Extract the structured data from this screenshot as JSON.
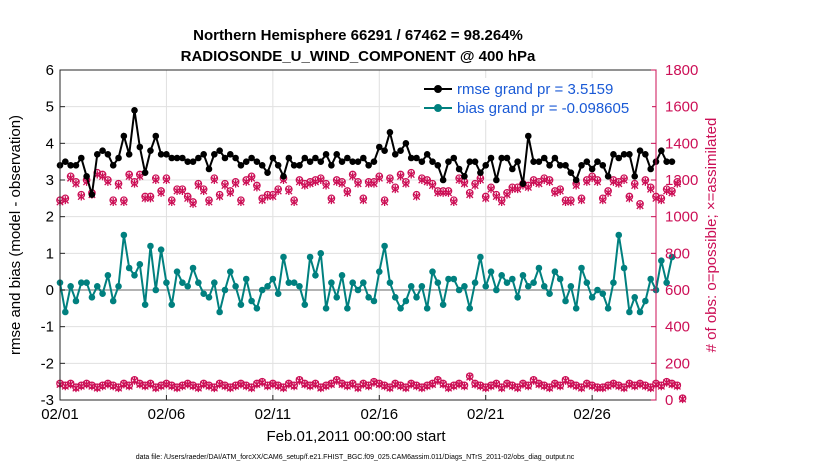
{
  "chart_data": {
    "type": "line",
    "title_line1": "Northern Hemisphere 66291 / 67462 = 98.264%",
    "title_line2": "RADIOSONDE_U_WIND_COMPONENT @ 400 hPa",
    "xlabel": "Feb.01,2011 00:00:00 start",
    "ylabel_left": "rmse and bias (model - observation)",
    "ylabel_right": "# of obs: o=possible; ×=assimilated",
    "footer": "data file: /Users/raeder/DAI/ATM_forcXX/CAM6_setup/f.e21.FHIST_BGC.f09_025.CAM6assim.011/Diags_NTrS_2011-02/obs_diag_output.nc",
    "x_ticks": [
      "02/01",
      "02/06",
      "02/11",
      "02/16",
      "02/21",
      "02/26"
    ],
    "x_tick_days": [
      0,
      5,
      10,
      15,
      20,
      25
    ],
    "xlim_days": [
      0,
      28
    ],
    "ylim_left": [
      -3,
      6
    ],
    "y_ticks_left": [
      "-3",
      "-2",
      "-1",
      "0",
      "1",
      "2",
      "3",
      "4",
      "5",
      "6"
    ],
    "ylim_right": [
      0,
      1800
    ],
    "y_ticks_right": [
      "0",
      "200",
      "400",
      "600",
      "800",
      "1000",
      "1200",
      "1400",
      "1600",
      "1800"
    ],
    "colors": {
      "rmse": "#000000",
      "bias": "#00807f",
      "obs": "#cc0f56",
      "zero_line": "#b3b3b3",
      "grid": "#e0e0e0",
      "legend_text": "#1a5ad6"
    },
    "legend": [
      {
        "key": "rmse",
        "label": "rmse grand pr = 3.5159"
      },
      {
        "key": "bias",
        "label": "bias grand pr = -0.098605"
      }
    ],
    "time_step_days": 0.25,
    "series": [
      {
        "name": "rmse",
        "axis": "left",
        "values": [
          3.4,
          3.5,
          3.4,
          3.4,
          3.6,
          3.1,
          2.6,
          3.7,
          3.8,
          3.7,
          3.4,
          3.6,
          4.2,
          3.7,
          4.9,
          3.9,
          3.2,
          3.8,
          4.2,
          3.7,
          3.7,
          3.6,
          3.6,
          3.6,
          3.5,
          3.5,
          3.6,
          3.7,
          3.3,
          3.7,
          3.8,
          3.6,
          3.7,
          3.6,
          3.4,
          3.5,
          3.6,
          3.5,
          3.4,
          3.2,
          3.6,
          3.4,
          3.1,
          3.6,
          3.4,
          3.4,
          3.6,
          3.5,
          3.6,
          3.5,
          3.7,
          3.4,
          3.7,
          3.5,
          3.6,
          3.5,
          3.5,
          3.6,
          3.4,
          3.5,
          3.9,
          3.8,
          4.3,
          3.7,
          3.8,
          4.0,
          3.6,
          3.6,
          3.5,
          3.7,
          3.5,
          3.4,
          3.0,
          3.5,
          3.6,
          3.3,
          3.1,
          3.5,
          3.5,
          3.2,
          3.4,
          3.6,
          3.0,
          3.6,
          3.6,
          3.3,
          3.5,
          2.9,
          4.2,
          3.5,
          3.5,
          3.6,
          3.4,
          3.6,
          3.4,
          3.4,
          3.2,
          3.0,
          3.4,
          3.5,
          3.3,
          3.5,
          3.4,
          3.1,
          3.7,
          3.6,
          3.7,
          3.7,
          3.1,
          3.8,
          3.7,
          3.3,
          3.5,
          3.8,
          3.5,
          3.5
        ]
      },
      {
        "name": "bias",
        "axis": "left",
        "values": [
          0.2,
          -0.6,
          0.1,
          -0.3,
          0.2,
          0.2,
          -0.2,
          0.1,
          -0.1,
          0.4,
          -0.3,
          0.1,
          1.5,
          0.6,
          0.4,
          0.7,
          -0.4,
          1.2,
          0.0,
          1.1,
          0.2,
          -0.4,
          0.5,
          0.2,
          0.1,
          0.6,
          0.2,
          -0.1,
          -0.2,
          0.2,
          -0.6,
          0.0,
          0.5,
          0.1,
          -0.4,
          0.3,
          -0.3,
          -0.5,
          0.0,
          0.1,
          0.3,
          -0.1,
          0.9,
          0.2,
          0.2,
          0.1,
          -0.4,
          0.9,
          0.4,
          1.0,
          -0.5,
          0.2,
          -0.2,
          0.4,
          -0.5,
          0.2,
          0.0,
          0.2,
          -0.2,
          -0.3,
          0.5,
          1.2,
          0.2,
          -0.2,
          -0.5,
          -0.3,
          0.1,
          -0.2,
          0.1,
          -0.5,
          0.5,
          0.2,
          -0.4,
          0.3,
          0.3,
          0.0,
          0.1,
          -0.5,
          0.2,
          0.9,
          0.1,
          0.5,
          0.0,
          0.4,
          0.2,
          0.3,
          -0.2,
          0.4,
          0.1,
          0.2,
          0.6,
          0.1,
          -0.1,
          0.5,
          0.3,
          -0.3,
          0.1,
          -0.5,
          0.6,
          0.2,
          -0.2,
          0.0,
          -0.1,
          -0.5,
          0.2,
          1.5,
          0.6,
          -0.6,
          -0.2,
          -0.6,
          -0.3,
          0.3,
          0.0,
          0.8,
          0.2,
          0.9
        ]
      },
      {
        "name": "obs_possible_high",
        "axis": "right",
        "values": [
          1090,
          1100,
          1220,
          1190,
          1120,
          1200,
          1130,
          1240,
          1230,
          1200,
          1090,
          1180,
          1090,
          1230,
          1190,
          1230,
          1110,
          1110,
          1210,
          1140,
          1210,
          1090,
          1150,
          1150,
          1110,
          1080,
          1180,
          1150,
          1090,
          1210,
          1120,
          1180,
          1140,
          1190,
          1090,
          1200,
          1220,
          1170,
          1100,
          1120,
          1120,
          1150,
          1210,
          1150,
          1090,
          1200,
          1180,
          1190,
          1200,
          1210,
          1180,
          1100,
          1200,
          1190,
          1140,
          1230,
          1190,
          1100,
          1190,
          1190,
          1220,
          1090,
          1210,
          1160,
          1230,
          1190,
          1240,
          1120,
          1210,
          1200,
          1180,
          1140,
          1140,
          1140,
          1090,
          1210,
          1190,
          1130,
          1180,
          1210,
          1110,
          1160,
          1120,
          1090,
          1130,
          1160,
          1160,
          1180,
          1170,
          1200,
          1190,
          1210,
          1200,
          1140,
          1150,
          1090,
          1090,
          1180,
          1100,
          1200,
          1220,
          1200,
          1100,
          1140,
          1200,
          1190,
          1210,
          1110,
          1180,
          1070,
          1200,
          1160,
          1110,
          1100,
          1150,
          1140,
          1190
        ]
      },
      {
        "name": "obs_assimilated_high",
        "axis": "right",
        "values": [
          1080,
          1090,
          1210,
          1180,
          1110,
          1190,
          1120,
          1230,
          1220,
          1190,
          1080,
          1170,
          1080,
          1220,
          1180,
          1220,
          1100,
          1100,
          1200,
          1130,
          1200,
          1080,
          1140,
          1140,
          1100,
          1070,
          1170,
          1140,
          1080,
          1200,
          1110,
          1170,
          1130,
          1180,
          1080,
          1190,
          1210,
          1160,
          1090,
          1110,
          1110,
          1140,
          1200,
          1140,
          1080,
          1190,
          1170,
          1180,
          1190,
          1200,
          1170,
          1090,
          1190,
          1180,
          1130,
          1220,
          1180,
          1090,
          1180,
          1180,
          1210,
          1080,
          1200,
          1150,
          1220,
          1180,
          1230,
          1110,
          1200,
          1190,
          1170,
          1130,
          1130,
          1130,
          1080,
          1200,
          1180,
          1120,
          1170,
          1200,
          1100,
          1150,
          1110,
          1080,
          1120,
          1150,
          1150,
          1170,
          1160,
          1190,
          1180,
          1200,
          1190,
          1130,
          1140,
          1080,
          1080,
          1170,
          1090,
          1190,
          1210,
          1190,
          1090,
          1130,
          1190,
          1180,
          1200,
          1100,
          1170,
          1060,
          1190,
          1150,
          1100,
          1090,
          1140,
          1130,
          1180
        ]
      },
      {
        "name": "obs_possible_low",
        "axis": "right",
        "values": [
          90,
          80,
          90,
          70,
          80,
          90,
          80,
          70,
          80,
          90,
          80,
          70,
          90,
          80,
          110,
          90,
          80,
          90,
          70,
          80,
          90,
          80,
          70,
          80,
          90,
          80,
          70,
          90,
          80,
          70,
          90,
          80,
          70,
          80,
          90,
          80,
          70,
          90,
          100,
          80,
          90,
          80,
          70,
          90,
          80,
          110,
          90,
          80,
          90,
          70,
          80,
          90,
          110,
          90,
          80,
          90,
          70,
          90,
          80,
          100,
          90,
          80,
          70,
          90,
          80,
          70,
          90,
          80,
          70,
          80,
          90,
          110,
          90,
          70,
          80,
          90,
          80,
          130,
          90,
          80,
          70,
          80,
          90,
          70,
          90,
          80,
          70,
          90,
          80,
          110,
          90,
          80,
          70,
          90,
          80,
          110,
          90,
          80,
          70,
          90,
          80,
          70,
          70,
          80,
          90,
          80,
          70,
          90,
          80,
          90,
          80,
          70,
          90,
          80,
          100,
          90,
          80,
          10
        ]
      },
      {
        "name": "obs_assimilated_low",
        "axis": "right",
        "values": [
          85,
          75,
          85,
          65,
          75,
          85,
          75,
          65,
          75,
          85,
          75,
          65,
          85,
          75,
          105,
          85,
          75,
          85,
          65,
          75,
          85,
          75,
          65,
          75,
          85,
          75,
          65,
          85,
          75,
          65,
          85,
          75,
          65,
          75,
          85,
          75,
          65,
          85,
          95,
          75,
          85,
          75,
          65,
          85,
          75,
          105,
          85,
          75,
          85,
          65,
          75,
          85,
          105,
          85,
          75,
          85,
          65,
          85,
          75,
          95,
          85,
          75,
          65,
          85,
          75,
          65,
          85,
          75,
          65,
          75,
          85,
          105,
          85,
          65,
          75,
          85,
          75,
          125,
          85,
          75,
          65,
          75,
          85,
          65,
          85,
          75,
          65,
          85,
          75,
          105,
          85,
          75,
          65,
          85,
          75,
          105,
          85,
          75,
          65,
          85,
          75,
          65,
          65,
          75,
          85,
          75,
          65,
          85,
          75,
          85,
          75,
          65,
          85,
          75,
          95,
          85,
          75,
          5
        ]
      }
    ]
  }
}
